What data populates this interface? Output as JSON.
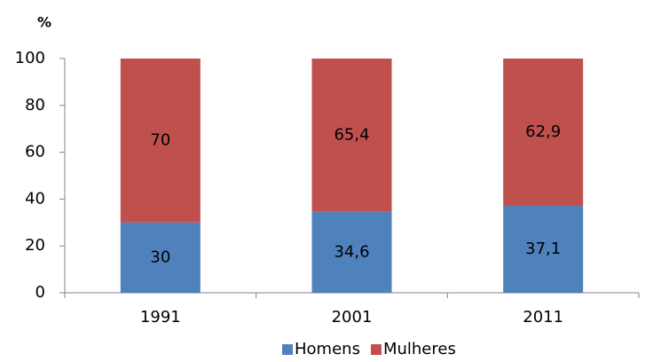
{
  "chart_data": {
    "type": "stacked_bar",
    "y_axis_label": "%",
    "categories": [
      "1991",
      "2001",
      "2011"
    ],
    "series": [
      {
        "name": "Homens",
        "color": "#4f81bd",
        "values": [
          30,
          34.6,
          37.1
        ],
        "value_labels": [
          "30",
          "34,6",
          "37,1"
        ]
      },
      {
        "name": "Mulheres",
        "color": "#c0504d",
        "values": [
          70,
          65.4,
          62.9
        ],
        "value_labels": [
          "70",
          "65,4",
          "62,9"
        ]
      }
    ],
    "ylim": [
      0,
      100
    ],
    "yticks": [
      0,
      20,
      40,
      60,
      80,
      100
    ],
    "grid": false,
    "legend": "bottom"
  }
}
